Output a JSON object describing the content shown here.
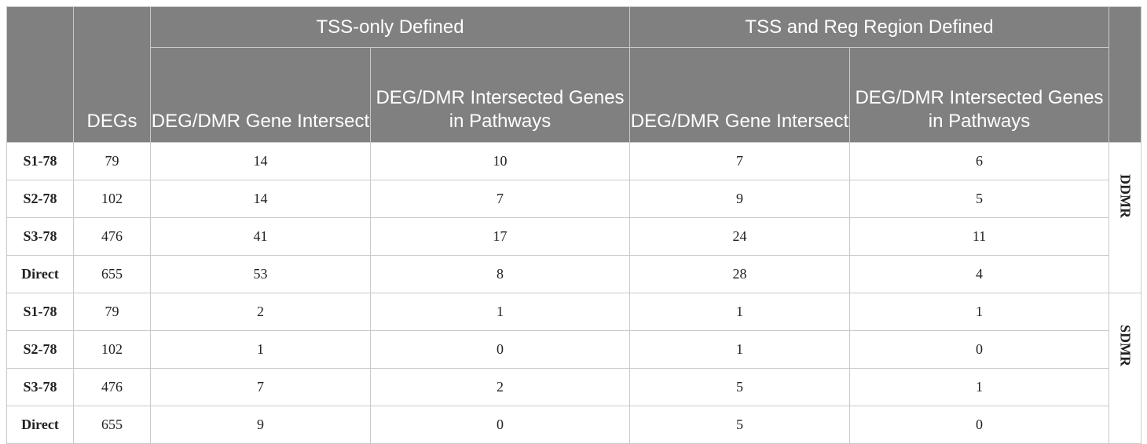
{
  "header": {
    "degs_label": "DEGs",
    "groups": [
      "TSS-only Defined",
      "TSS and Reg Region Defined"
    ],
    "subcols": [
      "DEG/DMR Gene Intersect",
      "DEG/DMR Intersected Genes in Pathways",
      "DEG/DMR Gene Intersect",
      "DEG/DMR Intersected Genes in Pathways"
    ]
  },
  "sections": [
    {
      "label": "DDMR",
      "rows": [
        {
          "name": "S1-78",
          "degs": "79",
          "vals": [
            "14",
            "10",
            "7",
            "6"
          ]
        },
        {
          "name": "S2-78",
          "degs": "102",
          "vals": [
            "14",
            "7",
            "9",
            "5"
          ]
        },
        {
          "name": "S3-78",
          "degs": "476",
          "vals": [
            "41",
            "17",
            "24",
            "11"
          ]
        },
        {
          "name": "Direct",
          "degs": "655",
          "vals": [
            "53",
            "8",
            "28",
            "4"
          ]
        }
      ]
    },
    {
      "label": "SDMR",
      "rows": [
        {
          "name": "S1-78",
          "degs": "79",
          "vals": [
            "2",
            "1",
            "1",
            "1"
          ]
        },
        {
          "name": "S2-78",
          "degs": "102",
          "vals": [
            "1",
            "0",
            "1",
            "0"
          ]
        },
        {
          "name": "S3-78",
          "degs": "476",
          "vals": [
            "7",
            "2",
            "5",
            "1"
          ]
        },
        {
          "name": "Direct",
          "degs": "655",
          "vals": [
            "9",
            "0",
            "5",
            "0"
          ]
        }
      ]
    }
  ]
}
